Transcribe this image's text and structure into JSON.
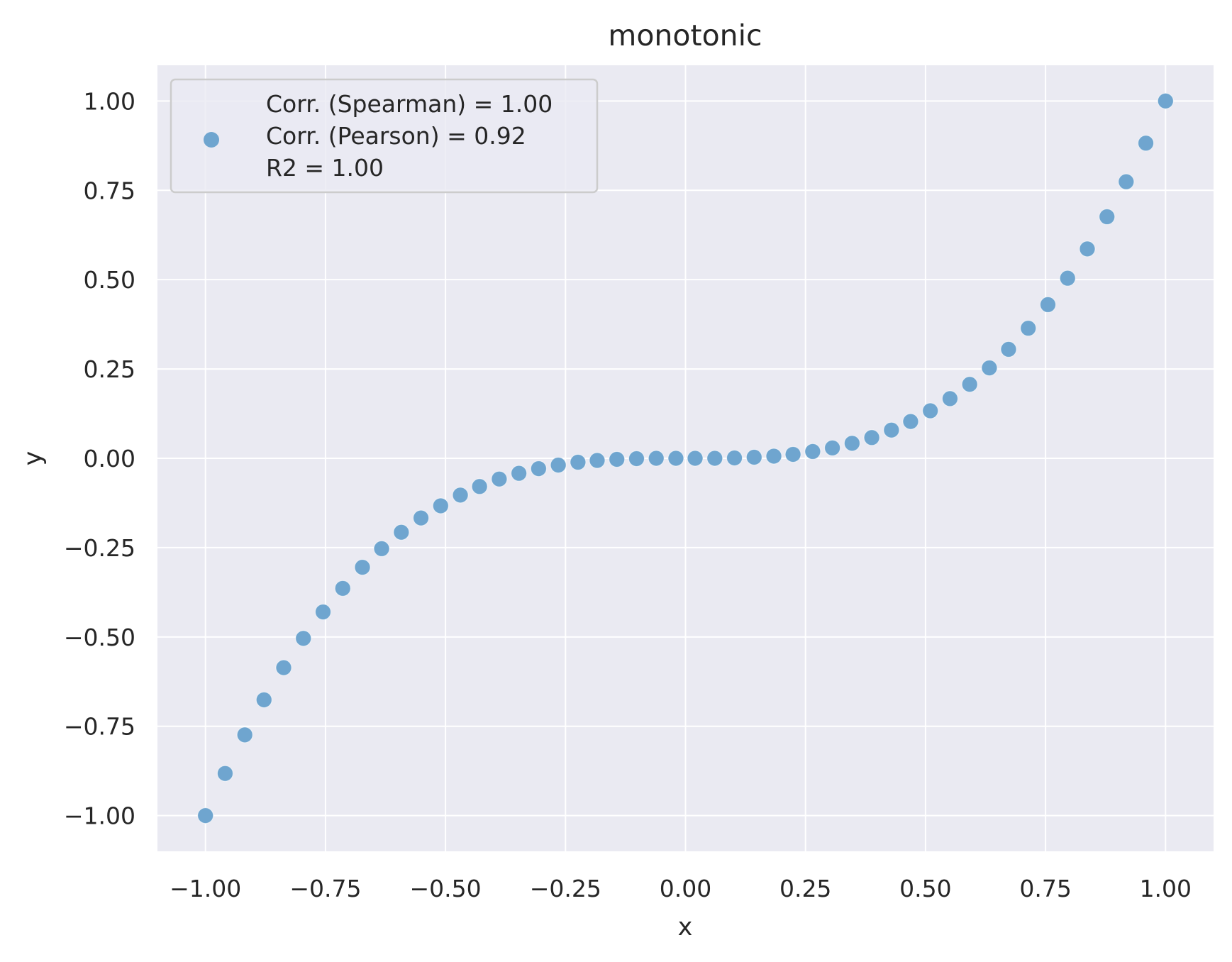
{
  "chart_data": {
    "type": "scatter",
    "title": "monotonic",
    "xlabel": "x",
    "ylabel": "y",
    "xlim": [
      -1.1,
      1.1
    ],
    "ylim": [
      -1.1,
      1.1
    ],
    "xticks": [
      -1.0,
      -0.75,
      -0.5,
      -0.25,
      0.0,
      0.25,
      0.5,
      0.75,
      1.0
    ],
    "xtick_labels": [
      "−1.00",
      "−0.75",
      "−0.50",
      "−0.25",
      "0.00",
      "0.25",
      "0.50",
      "0.75",
      "1.00"
    ],
    "yticks": [
      1.0,
      0.75,
      0.5,
      0.25,
      0.0,
      -0.25,
      -0.5,
      -0.75,
      -1.0
    ],
    "ytick_labels": [
      "1.00",
      "0.75",
      "0.50",
      "0.25",
      "0.00",
      "−0.25",
      "−0.50",
      "−0.75",
      "−1.00"
    ],
    "grid": true,
    "legend_position": "top-left",
    "legend_lines": [
      "Corr. (Spearman) = 1.00",
      "Corr. (Pearson) = 0.92",
      "R2 = 1.00"
    ],
    "colors": {
      "point": "#6fa5cf",
      "plot_bg": "#eaeaf2",
      "grid": "#ffffff",
      "text": "#262626"
    },
    "series": [
      {
        "x": [
          -1.0,
          -0.959,
          -0.918,
          -0.878,
          -0.837,
          -0.796,
          -0.755,
          -0.714,
          -0.673,
          -0.633,
          -0.592,
          -0.551,
          -0.51,
          -0.469,
          -0.429,
          -0.388,
          -0.347,
          -0.306,
          -0.265,
          -0.224,
          -0.184,
          -0.143,
          -0.102,
          -0.061,
          -0.02,
          0.02,
          0.061,
          0.102,
          0.143,
          0.184,
          0.224,
          0.265,
          0.306,
          0.347,
          0.388,
          0.429,
          0.469,
          0.51,
          0.551,
          0.592,
          0.633,
          0.673,
          0.714,
          0.755,
          0.796,
          0.837,
          0.878,
          0.918,
          0.959,
          1.0
        ],
        "y": [
          -1.0,
          -0.882,
          -0.774,
          -0.676,
          -0.586,
          -0.504,
          -0.43,
          -0.364,
          -0.305,
          -0.253,
          -0.207,
          -0.167,
          -0.133,
          -0.103,
          -0.079,
          -0.058,
          -0.042,
          -0.029,
          -0.019,
          -0.011,
          -0.006,
          -0.003,
          -0.001,
          0.0,
          0.0,
          0.0,
          0.0,
          0.001,
          0.003,
          0.006,
          0.011,
          0.019,
          0.029,
          0.042,
          0.058,
          0.079,
          0.103,
          0.133,
          0.167,
          0.207,
          0.253,
          0.305,
          0.364,
          0.43,
          0.504,
          0.586,
          0.676,
          0.774,
          0.882,
          1.0
        ]
      }
    ]
  }
}
